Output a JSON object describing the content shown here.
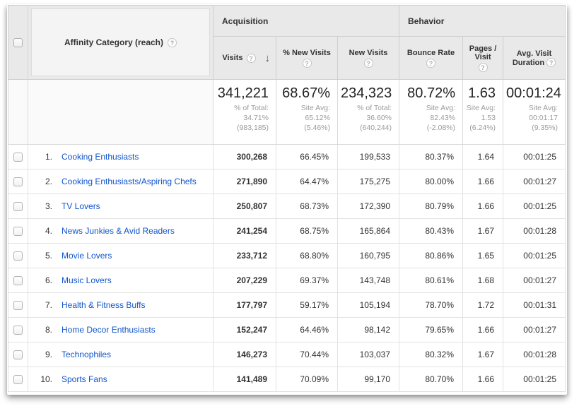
{
  "colors": {
    "link_blue": "#1155cc",
    "header_bg": "#e9e9e9",
    "sorted_col_bg": "#f8f8f8"
  },
  "header": {
    "dimension_label": "Affinity Category (reach)",
    "help_glyph": "?",
    "sort_arrow_glyph": "↓",
    "groups": {
      "acquisition": "Acquisition",
      "behavior": "Behavior"
    },
    "columns": {
      "visits": "Visits",
      "pct_new_visits": "% New Visits",
      "new_visits": "New Visits",
      "bounce_rate": "Bounce Rate",
      "pages_visit": "Pages / Visit",
      "avg_duration": "Avg. Visit Duration"
    }
  },
  "summary": {
    "visits": {
      "value": "341,221",
      "sub": "% of Total:\n34.71%\n(983,185)"
    },
    "pct_new_visits": {
      "value": "68.67%",
      "sub": "Site Avg:\n65.12%\n(5.46%)"
    },
    "new_visits": {
      "value": "234,323",
      "sub": "% of Total:\n36.60%\n(640,244)"
    },
    "bounce_rate": {
      "value": "80.72%",
      "sub": "Site Avg:\n82.43%\n(-2.08%)"
    },
    "pages_visit": {
      "value": "1.63",
      "sub": "Site Avg:\n1.53\n(6.24%)"
    },
    "avg_duration": {
      "value": "00:01:24",
      "sub": "Site Avg:\n00:01:17\n(9.35%)"
    }
  },
  "rows": [
    {
      "index": "1.",
      "name": "Cooking Enthusiasts",
      "visits": "300,268",
      "pct_new": "66.45%",
      "new_visits": "199,533",
      "bounce": "80.37%",
      "pages": "1.64",
      "duration": "00:01:25"
    },
    {
      "index": "2.",
      "name": "Cooking Enthusiasts/Aspiring Chefs",
      "visits": "271,890",
      "pct_new": "64.47%",
      "new_visits": "175,275",
      "bounce": "80.00%",
      "pages": "1.66",
      "duration": "00:01:27"
    },
    {
      "index": "3.",
      "name": "TV Lovers",
      "visits": "250,807",
      "pct_new": "68.73%",
      "new_visits": "172,390",
      "bounce": "80.79%",
      "pages": "1.66",
      "duration": "00:01:25"
    },
    {
      "index": "4.",
      "name": "News Junkies & Avid Readers",
      "visits": "241,254",
      "pct_new": "68.75%",
      "new_visits": "165,864",
      "bounce": "80.43%",
      "pages": "1.67",
      "duration": "00:01:28"
    },
    {
      "index": "5.",
      "name": "Movie Lovers",
      "visits": "233,712",
      "pct_new": "68.80%",
      "new_visits": "160,795",
      "bounce": "80.86%",
      "pages": "1.65",
      "duration": "00:01:25"
    },
    {
      "index": "6.",
      "name": "Music Lovers",
      "visits": "207,229",
      "pct_new": "69.37%",
      "new_visits": "143,748",
      "bounce": "80.61%",
      "pages": "1.68",
      "duration": "00:01:27"
    },
    {
      "index": "7.",
      "name": "Health & Fitness Buffs",
      "visits": "177,797",
      "pct_new": "59.17%",
      "new_visits": "105,194",
      "bounce": "78.70%",
      "pages": "1.72",
      "duration": "00:01:31"
    },
    {
      "index": "8.",
      "name": "Home Decor Enthusiasts",
      "visits": "152,247",
      "pct_new": "64.46%",
      "new_visits": "98,142",
      "bounce": "79.65%",
      "pages": "1.66",
      "duration": "00:01:27"
    },
    {
      "index": "9.",
      "name": "Technophiles",
      "visits": "146,273",
      "pct_new": "70.44%",
      "new_visits": "103,037",
      "bounce": "80.32%",
      "pages": "1.67",
      "duration": "00:01:28"
    },
    {
      "index": "10.",
      "name": "Sports Fans",
      "visits": "141,489",
      "pct_new": "70.09%",
      "new_visits": "99,170",
      "bounce": "80.70%",
      "pages": "1.66",
      "duration": "00:01:25"
    }
  ]
}
